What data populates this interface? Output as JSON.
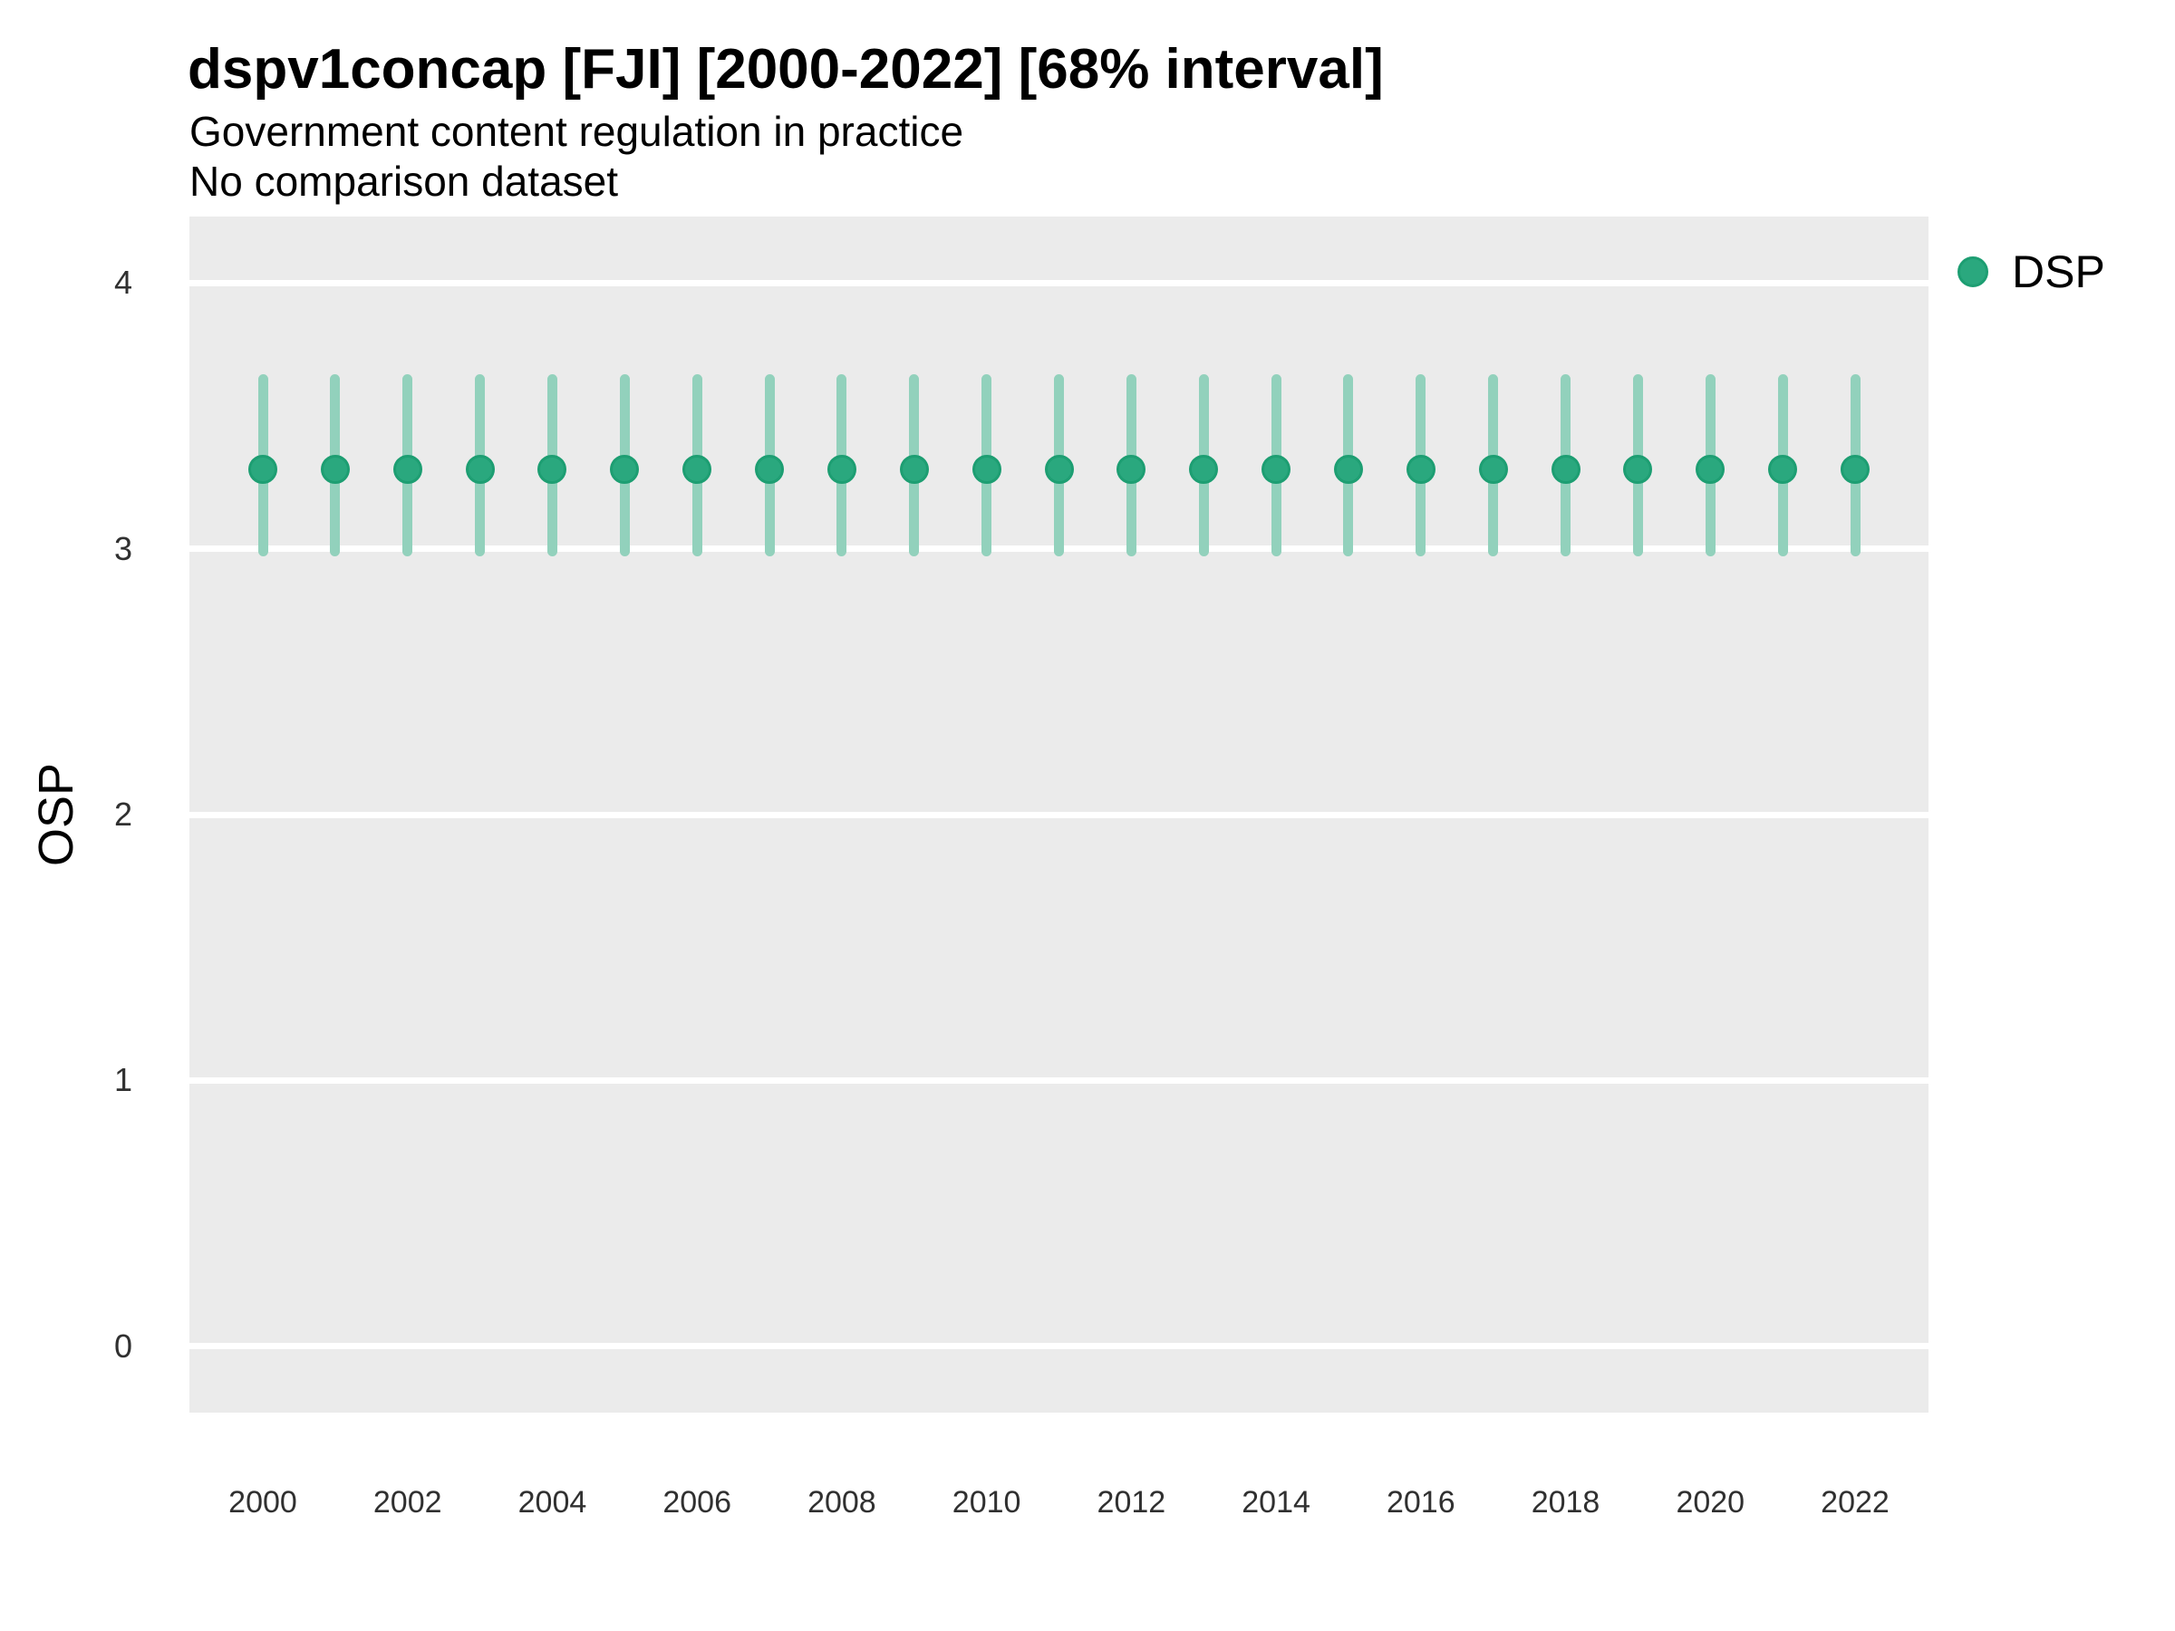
{
  "header": {
    "title": "dspv1concap [FJI] [2000-2022] [68% interval]",
    "subtitle": "Government content regulation in practice",
    "note": "No comparison dataset"
  },
  "legend": {
    "items": [
      {
        "label": "DSP"
      }
    ]
  },
  "chart_data": {
    "type": "scatter",
    "title": "dspv1concap [FJI] [2000-2022] [68% interval]",
    "subtitle": "Government content regulation in practice",
    "note": "No comparison dataset",
    "xlabel": "",
    "ylabel": "OSP",
    "ylim": [
      -0.25,
      4.25
    ],
    "yticks": [
      0,
      1,
      2,
      3,
      4
    ],
    "xticks": [
      2000,
      2002,
      2004,
      2006,
      2008,
      2010,
      2012,
      2014,
      2016,
      2018,
      2020,
      2022
    ],
    "x": [
      2000,
      2001,
      2002,
      2003,
      2004,
      2005,
      2006,
      2007,
      2008,
      2009,
      2010,
      2011,
      2012,
      2013,
      2014,
      2015,
      2016,
      2017,
      2018,
      2019,
      2020,
      2021,
      2022
    ],
    "series": [
      {
        "name": "DSP",
        "interval": "68%",
        "y": [
          3.3,
          3.3,
          3.3,
          3.3,
          3.3,
          3.3,
          3.3,
          3.3,
          3.3,
          3.3,
          3.3,
          3.3,
          3.3,
          3.3,
          3.3,
          3.3,
          3.3,
          3.3,
          3.3,
          3.3,
          3.3,
          3.3,
          3.3
        ],
        "y_low": [
          2.99,
          2.99,
          2.99,
          2.99,
          2.99,
          2.99,
          2.99,
          2.99,
          2.99,
          2.99,
          2.99,
          2.99,
          2.99,
          2.99,
          2.99,
          2.99,
          2.99,
          2.99,
          2.99,
          2.99,
          2.99,
          2.99,
          2.99
        ],
        "y_high": [
          3.64,
          3.64,
          3.64,
          3.64,
          3.64,
          3.64,
          3.64,
          3.64,
          3.64,
          3.64,
          3.64,
          3.64,
          3.64,
          3.64,
          3.64,
          3.64,
          3.64,
          3.64,
          3.64,
          3.64,
          3.64,
          3.64,
          3.64
        ]
      }
    ],
    "legend_position": "right",
    "grid": "horizontal major white gridlines on gray panel, no vertical gridlines, no axis lines",
    "colors": {
      "point": "#2aa87e",
      "point_border": "#1d9e72",
      "interval": "#92d1bc",
      "panel": "#ebebeb",
      "gridline": "#ffffff",
      "tick_text": "#303030",
      "text": "#000000"
    }
  }
}
